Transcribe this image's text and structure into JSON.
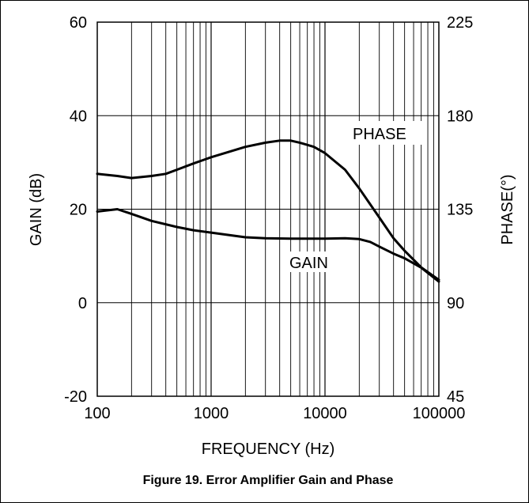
{
  "chart_data": {
    "type": "line",
    "title": "Figure 19. Error Amplifier Gain and Phase",
    "xlabel": "FREQUENCY (Hz)",
    "ylabel_left": "GAIN (dB)",
    "ylabel_right": "PHASE(°)",
    "x_scale": "log",
    "xlim": [
      100,
      100000
    ],
    "ylim_left": [
      -20,
      60
    ],
    "ylim_right": [
      45,
      225
    ],
    "x_ticks": [
      "100",
      "1000",
      "10000",
      "100000"
    ],
    "y_ticks_left": [
      "-20",
      "0",
      "20",
      "40",
      "60"
    ],
    "y_ticks_right": [
      "45",
      "90",
      "135",
      "180",
      "225"
    ],
    "grid": true,
    "series": [
      {
        "name": "PHASE",
        "axis": "right",
        "x": [
          100,
          150,
          200,
          300,
          400,
          500,
          700,
          1000,
          2000,
          3000,
          4000,
          5000,
          6000,
          8000,
          10000,
          15000,
          20000,
          30000,
          40000,
          50000,
          70000,
          100000
        ],
        "y": [
          152,
          151,
          150,
          151,
          152,
          154,
          157,
          160,
          165,
          167,
          168,
          168,
          167,
          165,
          162,
          154,
          145,
          131,
          121,
          115,
          107,
          101
        ]
      },
      {
        "name": "GAIN",
        "axis": "left",
        "x": [
          100,
          150,
          200,
          300,
          500,
          700,
          1000,
          2000,
          3000,
          5000,
          10000,
          15000,
          20000,
          25000,
          30000,
          40000,
          50000,
          70000,
          100000
        ],
        "y": [
          19.5,
          20.0,
          19.0,
          17.5,
          16.2,
          15.5,
          15.0,
          14.0,
          13.8,
          13.7,
          13.7,
          13.8,
          13.6,
          13.0,
          12.0,
          10.5,
          9.5,
          7.5,
          4.5
        ]
      }
    ]
  }
}
